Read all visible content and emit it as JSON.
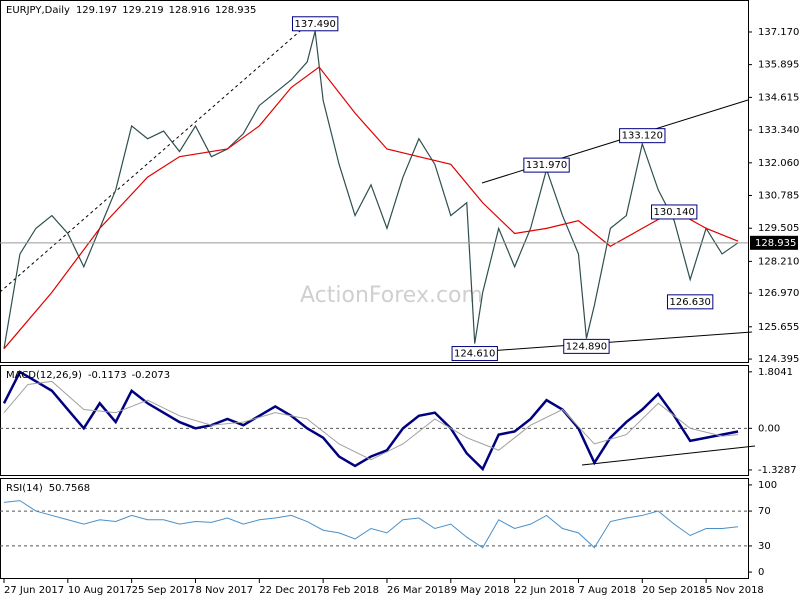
{
  "chart_data": [
    {
      "type": "line",
      "title": "EURJPY,Daily",
      "ohlc": [
        129.197,
        129.219,
        128.916,
        128.935
      ],
      "watermark": "ActionForex.com",
      "xlim": [
        -1,
        373
      ],
      "xticks": [
        {
          "value": 0,
          "label": "27 Jun 2017"
        },
        {
          "value": 32,
          "label": "10 Aug 2017"
        },
        {
          "value": 64,
          "label": "25 Sep 2017"
        },
        {
          "value": 96,
          "label": "8 Nov 2017"
        },
        {
          "value": 128,
          "label": "22 Dec 2017"
        },
        {
          "value": 160,
          "label": "8 Feb 2018"
        },
        {
          "value": 192,
          "label": "26 Mar 2018"
        },
        {
          "value": 224,
          "label": "9 May 2018"
        },
        {
          "value": 256,
          "label": "22 Jun 2018"
        },
        {
          "value": 288,
          "label": "7 Aug 2018"
        },
        {
          "value": 320,
          "label": "20 Sep 2018"
        },
        {
          "value": 352,
          "label": "5 Nov 2018"
        }
      ],
      "ylim": [
        124.28,
        138.38
      ],
      "yticks": [
        {
          "value": 137.17,
          "label": "137.170"
        },
        135.895,
        134.615,
        {
          "value": 133.34,
          "label": "133.340"
        },
        {
          "value": 132.06,
          "label": "132.060"
        },
        130.785,
        129.505,
        {
          "value": 128.21,
          "label": "128.210"
        },
        {
          "value": 126.97,
          "label": "126.970"
        },
        125.655,
        124.395
      ],
      "last": 128.935,
      "series": [
        {
          "name": "EURJPY",
          "color": "#2f4f4f",
          "x": [
            0,
            8,
            16,
            24,
            32,
            40,
            48,
            56,
            64,
            72,
            80,
            88,
            96,
            104,
            112,
            120,
            128,
            136,
            144,
            152,
            156,
            160,
            168,
            176,
            184,
            192,
            200,
            208,
            216,
            224,
            232,
            236,
            240,
            248,
            256,
            264,
            272,
            280,
            288,
            292,
            296,
            304,
            312,
            320,
            328,
            336,
            344,
            352,
            360,
            368
          ],
          "values": [
            124.8,
            128.5,
            129.5,
            130.0,
            129.3,
            128.0,
            129.5,
            131.0,
            133.5,
            133.0,
            133.3,
            132.5,
            133.5,
            132.3,
            132.6,
            133.2,
            134.3,
            134.8,
            135.3,
            136.0,
            137.2,
            134.5,
            132.0,
            130.0,
            131.2,
            129.5,
            131.5,
            133.0,
            132.0,
            130.0,
            130.5,
            125.0,
            127.0,
            129.5,
            128.0,
            129.5,
            131.8,
            130.0,
            128.5,
            125.2,
            126.5,
            129.5,
            130.0,
            132.8,
            131.0,
            129.8,
            127.5,
            129.5,
            128.5,
            128.935
          ]
        },
        {
          "name": "MA",
          "color": "#e00000",
          "x": [
            0,
            24,
            48,
            72,
            88,
            112,
            128,
            144,
            158,
            176,
            192,
            208,
            224,
            240,
            256,
            272,
            288,
            304,
            320,
            336,
            352,
            368
          ],
          "values": [
            124.8,
            127.0,
            129.5,
            131.5,
            132.3,
            132.6,
            133.5,
            135.0,
            135.8,
            134.0,
            132.6,
            132.3,
            132.0,
            130.5,
            129.3,
            129.5,
            129.8,
            128.8,
            129.5,
            130.2,
            129.5,
            129.0
          ]
        }
      ],
      "annotations": [
        {
          "x": 156,
          "value": 137.49,
          "label": "137.490"
        },
        {
          "x": 272,
          "value": 131.97,
          "label": "131.970"
        },
        {
          "x": 320,
          "value": 133.12,
          "label": "133.120"
        },
        {
          "x": 336,
          "value": 130.14,
          "label": "130.140"
        },
        {
          "x": 344,
          "value": 126.63,
          "label": "126.630"
        },
        {
          "x": 236,
          "value": 124.61,
          "label": "124.610"
        },
        {
          "x": 292,
          "value": 124.89,
          "label": "124.890"
        }
      ]
    },
    {
      "type": "line",
      "title": "MACD(12,26,9)",
      "readings": [
        -0.1173,
        -0.2073
      ],
      "xlim": [
        -1,
        373
      ],
      "ylim": [
        -1.49,
        1.99
      ],
      "yticks": [
        1.8041,
        {
          "value": 0,
          "label": "0.00"
        },
        -1.3287
      ],
      "levels": [
        0
      ],
      "series": [
        {
          "name": "MACD",
          "color": "#000080",
          "width": 2.5,
          "x": [
            0,
            8,
            16,
            24,
            32,
            40,
            48,
            56,
            64,
            72,
            80,
            88,
            96,
            104,
            112,
            120,
            128,
            136,
            144,
            152,
            160,
            168,
            176,
            184,
            192,
            200,
            208,
            216,
            224,
            232,
            240,
            248,
            256,
            264,
            272,
            280,
            288,
            296,
            304,
            312,
            320,
            328,
            336,
            344,
            352,
            360,
            368
          ],
          "values": [
            0.8,
            1.8,
            1.5,
            1.2,
            0.6,
            0.0,
            0.8,
            0.2,
            1.2,
            0.8,
            0.5,
            0.2,
            0.0,
            0.1,
            0.3,
            0.1,
            0.4,
            0.7,
            0.4,
            0.0,
            -0.3,
            -0.9,
            -1.2,
            -0.9,
            -0.7,
            0.0,
            0.4,
            0.5,
            0.0,
            -0.8,
            -1.3,
            -0.2,
            -0.1,
            0.3,
            0.9,
            0.6,
            0.0,
            -1.1,
            -0.3,
            0.2,
            0.6,
            1.1,
            0.4,
            -0.4,
            -0.3,
            -0.2,
            -0.1
          ]
        },
        {
          "name": "Signal",
          "color": "#a0a0a0",
          "width": 1,
          "x": [
            0,
            12,
            24,
            40,
            56,
            72,
            88,
            104,
            120,
            136,
            152,
            168,
            184,
            200,
            216,
            232,
            248,
            264,
            280,
            296,
            312,
            328,
            344,
            360,
            368
          ],
          "values": [
            0.5,
            1.4,
            1.5,
            0.6,
            0.5,
            0.9,
            0.4,
            0.1,
            0.2,
            0.5,
            0.3,
            -0.5,
            -1.0,
            -0.5,
            0.3,
            -0.3,
            -0.7,
            0.1,
            0.6,
            -0.5,
            -0.2,
            0.8,
            0.0,
            -0.25,
            -0.2
          ]
        }
      ]
    },
    {
      "type": "line",
      "title": "RSI(14)",
      "readings": [
        50.7568
      ],
      "xlim": [
        -1,
        373
      ],
      "ylim": [
        -6.8,
        106.8
      ],
      "yticks": [
        100,
        70,
        30,
        0
      ],
      "levels": [
        70,
        30
      ],
      "series": [
        {
          "name": "RSI",
          "color": "#4a90c8",
          "width": 1,
          "x": [
            0,
            8,
            16,
            24,
            32,
            40,
            48,
            56,
            64,
            72,
            80,
            88,
            96,
            104,
            112,
            120,
            128,
            136,
            144,
            152,
            160,
            168,
            176,
            184,
            192,
            200,
            208,
            216,
            224,
            232,
            240,
            248,
            256,
            264,
            272,
            280,
            288,
            296,
            304,
            312,
            320,
            328,
            336,
            344,
            352,
            360,
            368
          ],
          "values": [
            80,
            82,
            70,
            65,
            60,
            55,
            60,
            58,
            65,
            60,
            60,
            55,
            58,
            57,
            62,
            55,
            60,
            62,
            65,
            58,
            48,
            45,
            38,
            50,
            45,
            60,
            62,
            50,
            55,
            40,
            28,
            60,
            50,
            55,
            65,
            50,
            45,
            28,
            58,
            62,
            65,
            70,
            55,
            42,
            50,
            50,
            52
          ]
        }
      ]
    }
  ]
}
